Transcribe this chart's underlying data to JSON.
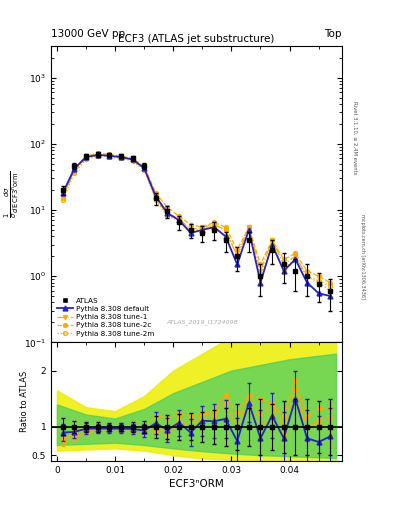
{
  "title_main": "ECF3 (ATLAS jet substructure)",
  "top_left_label": "13000 GeV pp",
  "top_right_label": "Top",
  "right_label_top": "Rivet 3.1.10, ≥ 2.4M events",
  "right_label_bot": "mcplots.cern.ch [arXiv:1306.3436]",
  "watermark": "ATLAS_2019_I1724098",
  "xlabel": "ECF3ⁿORM",
  "ylabel_main": "¹/₀ dσ/d ECF3ⁿORM",
  "ylabel_ratio": "Ratio to ATLAS",
  "atlas_color": "#000000",
  "pythia_default_color": "#2222cc",
  "pythia_tune_color": "#ffaa00",
  "x_data": [
    0.001,
    0.003,
    0.005,
    0.007,
    0.009,
    0.011,
    0.013,
    0.015,
    0.017,
    0.019,
    0.021,
    0.023,
    0.025,
    0.027,
    0.029,
    0.031,
    0.033,
    0.035,
    0.037,
    0.039,
    0.041,
    0.043,
    0.045,
    0.047
  ],
  "y_atlas": [
    20,
    46,
    65,
    70,
    68,
    65,
    60,
    46,
    15,
    9.5,
    6.5,
    5.0,
    4.5,
    5.0,
    3.5,
    2.0,
    3.5,
    1.0,
    2.5,
    1.5,
    1.2,
    1.0,
    0.75,
    0.6
  ],
  "y_atlas_err": [
    3,
    5,
    6,
    6,
    5,
    5,
    5,
    5,
    3,
    2.0,
    1.5,
    1.2,
    1.2,
    1.5,
    1.2,
    0.8,
    1.2,
    0.5,
    1.0,
    0.7,
    0.6,
    0.5,
    0.35,
    0.3
  ],
  "y_pythia_default": [
    18,
    42,
    63,
    68,
    66,
    63,
    58,
    43,
    16,
    9.0,
    7.0,
    4.5,
    5.0,
    5.5,
    4.0,
    1.5,
    5.0,
    0.8,
    3.0,
    1.2,
    1.8,
    0.8,
    0.55,
    0.5
  ],
  "y_pythia_tune1": [
    16,
    38,
    60,
    67,
    65,
    62,
    57,
    42,
    15,
    8.5,
    7.5,
    5.0,
    5.5,
    6.0,
    5.0,
    2.0,
    5.5,
    1.2,
    3.5,
    1.5,
    2.0,
    1.0,
    0.8,
    0.6
  ],
  "y_pythia_tune2c": [
    15,
    42,
    65,
    72,
    69,
    66,
    60,
    46,
    18,
    11,
    8.0,
    6.0,
    5.5,
    6.5,
    5.5,
    2.5,
    5.5,
    1.5,
    3.5,
    1.8,
    2.2,
    1.2,
    1.0,
    0.8
  ],
  "y_pythia_tune2m": [
    14,
    36,
    58,
    65,
    63,
    60,
    55,
    40,
    14,
    8.0,
    7.0,
    5.0,
    5.0,
    6.0,
    5.0,
    2.0,
    5.0,
    1.0,
    3.0,
    1.3,
    1.8,
    1.0,
    0.85,
    0.7
  ],
  "ylim_main": [
    0.1,
    3000
  ],
  "ylim_ratio": [
    0.4,
    2.5
  ],
  "xlim": [
    -0.001,
    0.049
  ],
  "yellow_band_x": [
    0.0,
    0.005,
    0.01,
    0.015,
    0.02,
    0.025,
    0.03,
    0.035,
    0.04,
    0.048
  ],
  "yellow_band_low": [
    0.58,
    0.6,
    0.62,
    0.58,
    0.5,
    0.44,
    0.42,
    0.4,
    0.38,
    0.35
  ],
  "yellow_band_high": [
    1.65,
    1.35,
    1.28,
    1.55,
    2.0,
    2.3,
    2.6,
    2.75,
    2.9,
    3.0
  ],
  "green_band_x": [
    0.0,
    0.005,
    0.01,
    0.015,
    0.02,
    0.025,
    0.03,
    0.035,
    0.04,
    0.048
  ],
  "green_band_low": [
    0.68,
    0.7,
    0.72,
    0.68,
    0.62,
    0.57,
    0.53,
    0.5,
    0.48,
    0.45
  ],
  "green_band_high": [
    1.4,
    1.22,
    1.15,
    1.32,
    1.6,
    1.8,
    2.0,
    2.1,
    2.2,
    2.3
  ]
}
